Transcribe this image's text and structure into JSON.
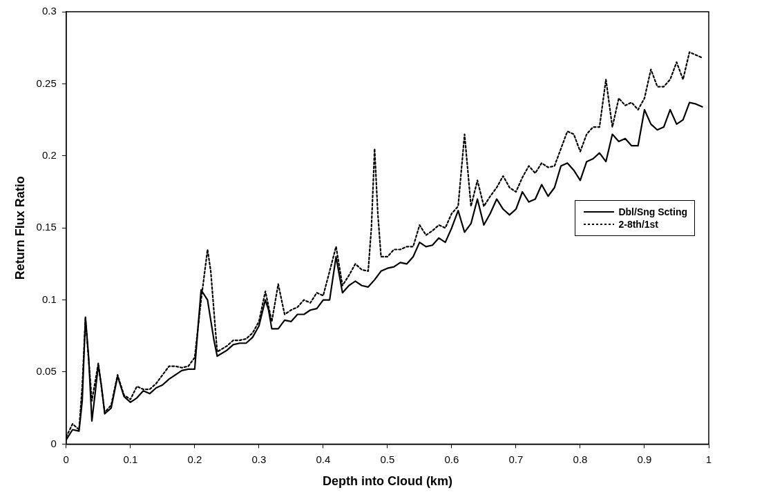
{
  "chart_data": {
    "type": "line",
    "xlabel": "Depth into Cloud (km)",
    "ylabel": "Return Flux Ratio",
    "xlim": [
      0,
      1
    ],
    "xticks": [
      0,
      0.1,
      0.2,
      0.3,
      0.4,
      0.5,
      0.6,
      0.7,
      0.8,
      0.9,
      1
    ],
    "ylim": [
      0,
      0.3
    ],
    "yticks": [
      0,
      0.05,
      0.1,
      0.15,
      0.2,
      0.25,
      0.3
    ],
    "grid": false,
    "legend": "center right",
    "marker": "none",
    "series": [
      {
        "name": "Dbl/Sng Scting",
        "color": "#000000",
        "line_style": "solid",
        "x": [
          0,
          0.01,
          0.02,
          0.025,
          0.03,
          0.035,
          0.04,
          0.045,
          0.05,
          0.055,
          0.06,
          0.07,
          0.08,
          0.09,
          0.1,
          0.11,
          0.12,
          0.13,
          0.14,
          0.15,
          0.16,
          0.17,
          0.18,
          0.19,
          0.2,
          0.205,
          0.21,
          0.22,
          0.23,
          0.235,
          0.25,
          0.26,
          0.27,
          0.28,
          0.29,
          0.3,
          0.31,
          0.315,
          0.32,
          0.33,
          0.34,
          0.35,
          0.36,
          0.37,
          0.38,
          0.39,
          0.4,
          0.41,
          0.42,
          0.43,
          0.44,
          0.45,
          0.46,
          0.47,
          0.48,
          0.49,
          0.5,
          0.51,
          0.52,
          0.53,
          0.54,
          0.55,
          0.56,
          0.57,
          0.58,
          0.59,
          0.6,
          0.61,
          0.62,
          0.63,
          0.64,
          0.65,
          0.66,
          0.67,
          0.68,
          0.69,
          0.7,
          0.71,
          0.72,
          0.73,
          0.74,
          0.75,
          0.76,
          0.77,
          0.78,
          0.79,
          0.8,
          0.81,
          0.82,
          0.83,
          0.84,
          0.85,
          0.86,
          0.87,
          0.88,
          0.89,
          0.9,
          0.91,
          0.92,
          0.93,
          0.94,
          0.95,
          0.96,
          0.97,
          0.98,
          0.99
        ],
        "values": [
          0.003,
          0.01,
          0.009,
          0.03,
          0.088,
          0.06,
          0.016,
          0.035,
          0.055,
          0.04,
          0.021,
          0.025,
          0.047,
          0.033,
          0.029,
          0.032,
          0.037,
          0.035,
          0.039,
          0.041,
          0.045,
          0.048,
          0.051,
          0.052,
          0.052,
          0.08,
          0.107,
          0.1,
          0.072,
          0.061,
          0.065,
          0.069,
          0.07,
          0.07,
          0.074,
          0.082,
          0.1,
          0.093,
          0.08,
          0.08,
          0.086,
          0.085,
          0.09,
          0.09,
          0.093,
          0.094,
          0.1,
          0.1,
          0.13,
          0.105,
          0.11,
          0.113,
          0.11,
          0.109,
          0.114,
          0.12,
          0.122,
          0.123,
          0.126,
          0.125,
          0.13,
          0.14,
          0.137,
          0.138,
          0.143,
          0.14,
          0.15,
          0.162,
          0.147,
          0.153,
          0.17,
          0.152,
          0.16,
          0.17,
          0.163,
          0.159,
          0.163,
          0.175,
          0.168,
          0.17,
          0.18,
          0.172,
          0.178,
          0.193,
          0.195,
          0.19,
          0.183,
          0.196,
          0.198,
          0.202,
          0.196,
          0.215,
          0.21,
          0.212,
          0.207,
          0.207,
          0.232,
          0.222,
          0.218,
          0.22,
          0.232,
          0.222,
          0.225,
          0.237,
          0.236,
          0.234
        ]
      },
      {
        "name": "2-8th/1st",
        "color": "#000000",
        "line_style": "dotted",
        "x": [
          0,
          0.01,
          0.02,
          0.025,
          0.03,
          0.04,
          0.05,
          0.06,
          0.07,
          0.08,
          0.09,
          0.1,
          0.11,
          0.12,
          0.13,
          0.14,
          0.15,
          0.16,
          0.17,
          0.18,
          0.19,
          0.2,
          0.21,
          0.22,
          0.225,
          0.235,
          0.25,
          0.26,
          0.27,
          0.28,
          0.29,
          0.3,
          0.31,
          0.32,
          0.33,
          0.34,
          0.35,
          0.36,
          0.37,
          0.38,
          0.39,
          0.4,
          0.42,
          0.43,
          0.44,
          0.45,
          0.46,
          0.47,
          0.475,
          0.48,
          0.485,
          0.49,
          0.5,
          0.51,
          0.52,
          0.53,
          0.54,
          0.55,
          0.56,
          0.57,
          0.58,
          0.59,
          0.6,
          0.61,
          0.615,
          0.62,
          0.63,
          0.64,
          0.65,
          0.66,
          0.67,
          0.68,
          0.69,
          0.7,
          0.71,
          0.72,
          0.73,
          0.74,
          0.75,
          0.76,
          0.77,
          0.78,
          0.79,
          0.8,
          0.81,
          0.82,
          0.83,
          0.84,
          0.85,
          0.86,
          0.87,
          0.88,
          0.89,
          0.9,
          0.91,
          0.92,
          0.93,
          0.94,
          0.95,
          0.96,
          0.97,
          0.98,
          0.99
        ],
        "values": [
          0.005,
          0.014,
          0.01,
          0.04,
          0.087,
          0.03,
          0.056,
          0.022,
          0.027,
          0.048,
          0.034,
          0.031,
          0.04,
          0.038,
          0.038,
          0.042,
          0.048,
          0.054,
          0.054,
          0.053,
          0.054,
          0.06,
          0.1,
          0.135,
          0.12,
          0.064,
          0.068,
          0.072,
          0.072,
          0.073,
          0.077,
          0.085,
          0.106,
          0.085,
          0.111,
          0.09,
          0.093,
          0.095,
          0.1,
          0.098,
          0.105,
          0.103,
          0.137,
          0.11,
          0.117,
          0.125,
          0.121,
          0.12,
          0.15,
          0.205,
          0.16,
          0.13,
          0.13,
          0.135,
          0.135,
          0.137,
          0.137,
          0.152,
          0.145,
          0.148,
          0.152,
          0.15,
          0.16,
          0.165,
          0.19,
          0.215,
          0.165,
          0.183,
          0.165,
          0.172,
          0.178,
          0.186,
          0.178,
          0.175,
          0.185,
          0.193,
          0.188,
          0.195,
          0.192,
          0.193,
          0.205,
          0.217,
          0.215,
          0.203,
          0.215,
          0.22,
          0.22,
          0.253,
          0.22,
          0.24,
          0.235,
          0.237,
          0.232,
          0.24,
          0.26,
          0.248,
          0.248,
          0.253,
          0.265,
          0.253,
          0.272,
          0.27,
          0.268
        ]
      }
    ]
  }
}
